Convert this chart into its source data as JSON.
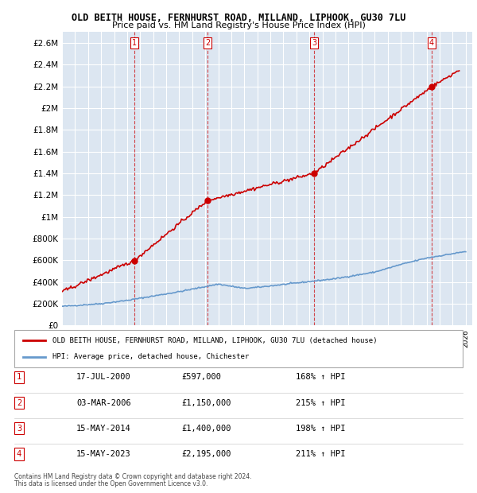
{
  "title": "OLD BEITH HOUSE, FERNHURST ROAD, MILLAND, LIPHOOK, GU30 7LU",
  "subtitle": "Price paid vs. HM Land Registry's House Price Index (HPI)",
  "ylabel_ticks": [
    "£0",
    "£200K",
    "£400K",
    "£600K",
    "£800K",
    "£1M",
    "£1.2M",
    "£1.4M",
    "£1.6M",
    "£1.8M",
    "£2M",
    "£2.2M",
    "£2.4M",
    "£2.6M"
  ],
  "ytick_values": [
    0,
    200000,
    400000,
    600000,
    800000,
    1000000,
    1200000,
    1400000,
    1600000,
    1800000,
    2000000,
    2200000,
    2400000,
    2600000
  ],
  "xlim_start": 1995.0,
  "xlim_end": 2026.5,
  "ylim_min": 0,
  "ylim_max": 2700000,
  "purchases": [
    {
      "date_num": 2000.54,
      "price": 597000,
      "label": "1"
    },
    {
      "date_num": 2006.17,
      "price": 1150000,
      "label": "2"
    },
    {
      "date_num": 2014.37,
      "price": 1400000,
      "label": "3"
    },
    {
      "date_num": 2023.37,
      "price": 2195000,
      "label": "4"
    }
  ],
  "legend_house": "OLD BEITH HOUSE, FERNHURST ROAD, MILLAND, LIPHOOK, GU30 7LU (detached house)",
  "legend_hpi": "HPI: Average price, detached house, Chichester",
  "table_rows": [
    {
      "num": "1",
      "date": "17-JUL-2000",
      "price": "£597,000",
      "pct": "168% ↑ HPI"
    },
    {
      "num": "2",
      "date": "03-MAR-2006",
      "price": "£1,150,000",
      "pct": "215% ↑ HPI"
    },
    {
      "num": "3",
      "date": "15-MAY-2014",
      "price": "£1,400,000",
      "pct": "198% ↑ HPI"
    },
    {
      "num": "4",
      "date": "15-MAY-2023",
      "price": "£2,195,000",
      "pct": "211% ↑ HPI"
    }
  ],
  "footnote1": "Contains HM Land Registry data © Crown copyright and database right 2024.",
  "footnote2": "This data is licensed under the Open Government Licence v3.0.",
  "house_color": "#cc0000",
  "hpi_color": "#6699cc",
  "vline_color": "#cc0000",
  "bg_color": "#dce6f1",
  "plot_bg": "#dce6f1"
}
